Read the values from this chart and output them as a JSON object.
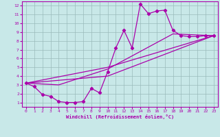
{
  "xlabel": "Windchill (Refroidissement éolien,°C)",
  "xlim": [
    -0.5,
    23.5
  ],
  "ylim": [
    0.5,
    12.5
  ],
  "xticks": [
    0,
    1,
    2,
    3,
    4,
    5,
    6,
    7,
    8,
    9,
    10,
    11,
    12,
    13,
    14,
    15,
    16,
    17,
    18,
    19,
    20,
    21,
    22,
    23
  ],
  "yticks": [
    1,
    2,
    3,
    4,
    5,
    6,
    7,
    8,
    9,
    10,
    11,
    12
  ],
  "bg_color": "#c8e8e8",
  "line_color": "#aa00aa",
  "grid_color": "#99bbbb",
  "curve1_x": [
    0,
    1,
    2,
    3,
    4,
    5,
    6,
    7,
    8,
    9,
    10,
    11,
    12,
    13,
    14,
    15,
    16,
    17,
    18,
    19,
    20,
    21,
    22,
    23
  ],
  "curve1_y": [
    3.2,
    2.8,
    1.9,
    1.7,
    1.1,
    1.0,
    1.0,
    1.1,
    2.6,
    2.1,
    4.5,
    7.2,
    9.2,
    7.2,
    12.2,
    11.1,
    11.4,
    11.5,
    9.2,
    8.6,
    8.5,
    8.5,
    8.6,
    8.6
  ],
  "curve2_x": [
    0,
    10,
    23
  ],
  "curve2_y": [
    3.2,
    4.0,
    8.6
  ],
  "curve3_x": [
    0,
    10,
    23
  ],
  "curve3_y": [
    3.2,
    5.0,
    8.6
  ],
  "curve4_x": [
    0,
    4,
    10,
    18,
    23
  ],
  "curve4_y": [
    3.2,
    3.0,
    4.8,
    8.8,
    8.6
  ]
}
